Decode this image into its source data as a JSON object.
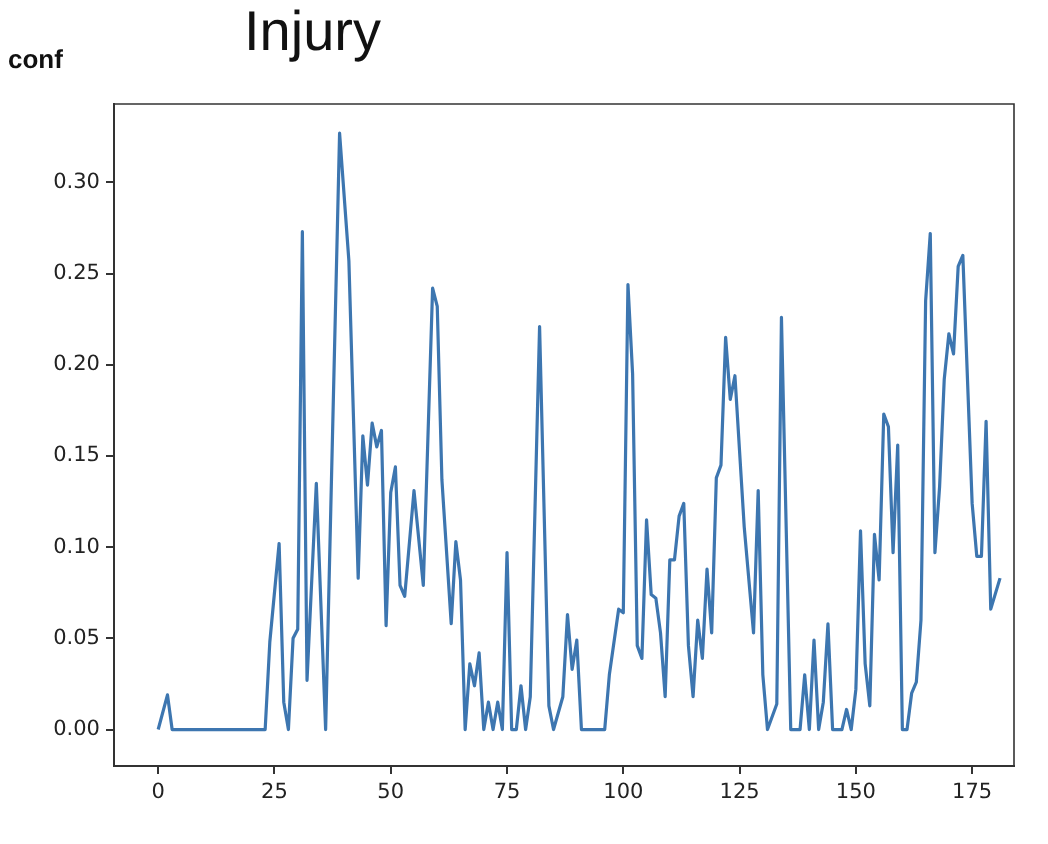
{
  "chart_data": {
    "type": "line",
    "title": "Injury",
    "ylabel": "conf",
    "x": [
      0,
      2,
      3,
      23,
      24,
      26,
      27,
      28,
      29,
      30,
      31,
      32,
      34,
      36,
      39,
      41,
      43,
      44,
      45,
      46,
      47,
      48,
      49,
      50,
      51,
      52,
      53,
      55,
      57,
      59,
      60,
      61,
      63,
      64,
      65,
      66,
      67,
      68,
      69,
      70,
      71,
      72,
      73,
      74,
      75,
      76,
      77,
      78,
      79,
      80,
      82,
      84,
      85,
      87,
      88,
      89,
      90,
      91,
      96,
      97,
      99,
      100,
      101,
      102,
      103,
      104,
      105,
      106,
      107,
      108,
      109,
      110,
      111,
      112,
      113,
      114,
      115,
      116,
      117,
      118,
      119,
      120,
      121,
      122,
      123,
      124,
      126,
      128,
      129,
      130,
      131,
      133,
      134,
      136,
      138,
      139,
      140,
      141,
      142,
      143,
      144,
      145,
      147,
      148,
      149,
      150,
      151,
      152,
      153,
      154,
      155,
      156,
      157,
      158,
      159,
      160,
      161,
      162,
      163,
      164,
      165,
      166,
      167,
      168,
      169,
      170,
      171,
      172,
      173,
      175,
      176,
      177,
      178,
      179,
      181
    ],
    "series": [
      {
        "color": "#3d76b0",
        "values": [
          0,
          0.019,
          0,
          0,
          0.048,
          0.102,
          0.015,
          0,
          0.05,
          0.055,
          0.273,
          0.027,
          0.135,
          0,
          0.327,
          0.257,
          0.083,
          0.161,
          0.134,
          0.168,
          0.155,
          0.164,
          0.057,
          0.13,
          0.144,
          0.079,
          0.073,
          0.131,
          0.079,
          0.242,
          0.232,
          0.137,
          0.058,
          0.103,
          0.082,
          0,
          0.036,
          0.024,
          0.042,
          0,
          0.015,
          0,
          0.015,
          0,
          0.097,
          0,
          0,
          0.024,
          0,
          0.018,
          0.221,
          0.013,
          0,
          0.018,
          0.063,
          0.033,
          0.049,
          0,
          0,
          0.03,
          0.066,
          0.064,
          0.244,
          0.195,
          0.046,
          0.039,
          0.115,
          0.074,
          0.072,
          0.053,
          0.018,
          0.093,
          0.093,
          0.117,
          0.124,
          0.046,
          0.018,
          0.06,
          0.039,
          0.088,
          0.053,
          0.138,
          0.145,
          0.215,
          0.181,
          0.194,
          0.111,
          0.053,
          0.131,
          0.03,
          0,
          0.014,
          0.226,
          0,
          0,
          0.03,
          0,
          0.049,
          0,
          0.015,
          0.058,
          0,
          0,
          0.011,
          0,
          0.022,
          0.109,
          0.036,
          0.013,
          0.107,
          0.082,
          0.173,
          0.166,
          0.097,
          0.156,
          0,
          0,
          0.02,
          0.026,
          0.06,
          0.235,
          0.272,
          0.097,
          0.133,
          0.192,
          0.217,
          0.206,
          0.254,
          0.26,
          0.124,
          0.095,
          0.095,
          0.169,
          0.066,
          0.083
        ]
      }
    ],
    "xlim": [
      -9.5,
      184
    ],
    "xticks": [
      0,
      25,
      50,
      75,
      100,
      125,
      150,
      175
    ],
    "ylim": [
      -0.02,
      0.343
    ],
    "yticks": [
      {
        "value": 0,
        "label": "0.00"
      },
      0.05,
      {
        "value": 0.1,
        "label": "0.10"
      },
      0.15,
      {
        "value": 0.2,
        "label": "0.20"
      },
      0.25,
      {
        "value": 0.3,
        "label": "0.30"
      }
    ],
    "grid": false,
    "legend": false,
    "marker": "none",
    "line_style": "solid"
  }
}
